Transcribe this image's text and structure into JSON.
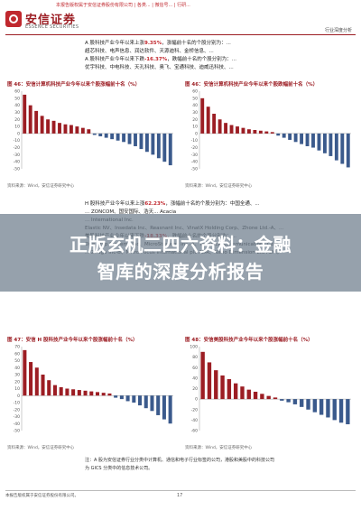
{
  "header": {
    "logo_cn": "安信证券",
    "logo_en": "ESSENCE SECURITIES",
    "red_text": "本报告版权属于安信证券股份有限公司 | 各类... | 微信号... | 行研... ",
    "right_text": "行业深度分析"
  },
  "top_text": [
    {
      "prefix": "A 股科技产业今年以来上涨",
      "value": "9.35%",
      "suffix": "，涨幅前十名的个股分别为：..."
    },
    {
      "prefix": "超芯科技、电声信息、润达软件、天源迪科、金桥信息、...",
      "value": "",
      "suffix": ""
    },
    {
      "prefix": "A 股科技产业今年以来下跌",
      "value": "-16.37%",
      "suffix": "，跌幅前十名的个股分别为：..."
    },
    {
      "prefix": "优宇科技、中电科技、天孔科技、奥飞、宝通科技、迪威迅科技、...",
      "value": "",
      "suffix": ""
    }
  ],
  "charts": [
    {
      "title": "图 46：安信计算机科技产业今年以来个股涨幅前十名（%）",
      "source": "资料来源：Wind，安信证券研究中心",
      "values": [
        55,
        40,
        32,
        25,
        20,
        18,
        15,
        13,
        12,
        10,
        8,
        6,
        -2,
        -4,
        -6,
        -8,
        -10,
        -12,
        -15,
        -18,
        -22,
        -26,
        -30,
        -35,
        -40,
        -45
      ],
      "ylim": [
        -50,
        60
      ]
    },
    {
      "title": "图 46：安信计算机科技产业今年以来个股跌幅前十名（%）",
      "source": "资料来源：Wind，安信证券研究中心",
      "values": [
        50,
        38,
        28,
        20,
        15,
        12,
        10,
        8,
        6,
        5,
        4,
        3,
        2,
        -3,
        -6,
        -9,
        -12,
        -15,
        -18,
        -20,
        -24,
        -28,
        -32,
        -38,
        -43,
        -48
      ],
      "ylim": [
        -50,
        60
      ]
    }
  ],
  "mid_text": [
    {
      "prefix": "H 股科技产业今年以来上涨",
      "value": "62.23%",
      "suffix": "，涨幅前十名的个股分别为：中国全通、..."
    },
    {
      "prefix": "",
      "value": "",
      "suffix": "... ZONCOM、国安国际、浩天... Acacia"
    },
    {
      "prefix": "",
      "value": "",
      "suffix": "... International Inc."
    },
    {
      "prefix": "Elastic NV、Insedata Inc、Reasnant Inc、VinatX Holding Corp、Zhone Ltd.-A、...",
      "value": "",
      "suffix": ""
    },
    {
      "prefix": "美股科技产业今年以来下跌",
      "value": "-18.33%",
      "suffix": "，跌幅前十名的个股分别为：..."
    },
    {
      "prefix": "One Stop Systems Inc、MicroStrategy Inc.-A、Technical Communications Corp、...",
      "value": "",
      "suffix": ""
    },
    {
      "prefix": "... Zedge Inc-B、Micro Focus International plc ADR、Nano Dimension Ltd ADR。",
      "value": "",
      "suffix": ""
    }
  ],
  "banner": {
    "line1": "正版玄机二四六资料：金融",
    "line2": "智库的深度分析报告"
  },
  "charts_bottom": [
    {
      "title": "图 47：安信 H 股科技产业今年以来个股涨幅前十名（%）",
      "source": "资料来源：Wind，安信证券研究中心",
      "values": [
        65,
        48,
        40,
        30,
        22,
        15,
        12,
        10,
        9,
        8,
        7,
        6,
        5,
        4,
        3,
        -3,
        -5,
        -8,
        -10,
        -14,
        -18,
        -22,
        -28,
        -34,
        -40
      ],
      "ylim": [
        -50,
        70
      ]
    },
    {
      "title": "图 48：安信美股科技产业今年以来个股涨幅前十名（%）",
      "source": "资料来源：Wind，安信证券研究中心",
      "values": [
        90,
        70,
        55,
        45,
        38,
        30,
        24,
        18,
        14,
        10,
        6,
        3,
        -3,
        -6,
        -10,
        -15,
        -20,
        -25,
        -30,
        -35,
        -40,
        -45,
        -48
      ],
      "ylim": [
        -60,
        100
      ]
    }
  ],
  "notes": [
    "注：A 股为安信证券行业分类中计算机、通信和电子行业标签的公司，港股和美股中的科技公司",
    "为 GICS 分类中的信息技术公司。"
  ],
  "footer": {
    "left": "本报告版权属于安信证券股份有限公司。",
    "page": "17"
  },
  "colors": {
    "bar": "#9c1d23",
    "accent": "#c0282e",
    "banner": "#6e7d8c"
  }
}
